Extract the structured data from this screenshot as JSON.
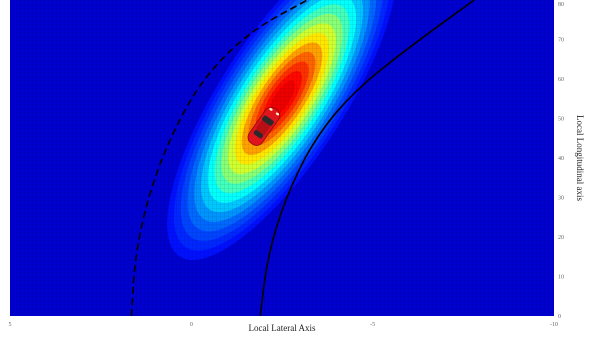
{
  "chart_data": {
    "type": "heatmap",
    "title": "",
    "xlabel": "Local Lateral Axis",
    "ylabel": "Local Longitudinal axis",
    "x_reversed": true,
    "xlim": [
      5,
      -10
    ],
    "ylim": [
      0,
      80
    ],
    "x_ticks": [
      5,
      0,
      -5,
      -10
    ],
    "y_ticks": [
      0,
      10,
      20,
      30,
      40,
      50,
      60,
      70,
      80
    ],
    "colormap": "jet",
    "vehicle_position": {
      "x": -2,
      "y": 48
    },
    "vehicle_color": "#e0141c",
    "distribution_peak": {
      "x": -2.5,
      "y": 55
    },
    "boundaries": [
      {
        "style": "dashed",
        "color": "#000000",
        "points": [
          [
            1.65,
            0
          ],
          [
            1.55,
            15
          ],
          [
            1.2,
            30
          ],
          [
            0.6,
            45
          ],
          [
            -0.3,
            60
          ],
          [
            -1.6,
            72
          ],
          [
            -3.2,
            80
          ]
        ]
      },
      {
        "style": "solid",
        "color": "#000000",
        "points": [
          [
            -1.9,
            0
          ],
          [
            -2.1,
            15
          ],
          [
            -2.6,
            30
          ],
          [
            -3.4,
            45
          ],
          [
            -4.5,
            57
          ],
          [
            -6.0,
            68
          ],
          [
            -7.8,
            80
          ]
        ]
      }
    ]
  }
}
